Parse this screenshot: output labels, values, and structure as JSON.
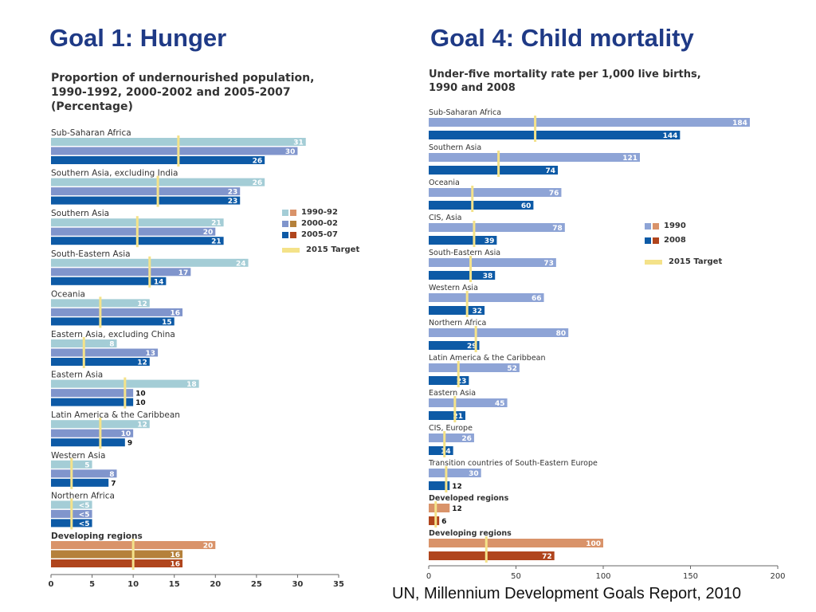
{
  "slide": {
    "title_left": "Goal 1: Hunger",
    "title_right": "Goal 4: Child mortality",
    "source": "UN, Millennium Development Goals Report, 2010"
  },
  "chart_data": [
    {
      "type": "bar",
      "orientation": "horizontal",
      "title": "Proportion of undernourished population,\n1990-1992, 2000-2002 and 2005-2007\n(Percentage)",
      "categories": [
        "Sub-Saharan Africa",
        "Southern Asia, excluding India",
        "Southern Asia",
        "South-Eastern Asia",
        "Oceania",
        "Eastern Asia, excluding China",
        "Eastern Asia",
        "Latin America & the Caribbean",
        "Western Asia",
        "Northern Africa",
        "Developing regions"
      ],
      "series": [
        {
          "name": "1990-92",
          "values": [
            31,
            26,
            21,
            24,
            12,
            8,
            18,
            12,
            5,
            5,
            20
          ],
          "labels": [
            "31",
            "26",
            "21",
            "24",
            "12",
            "8",
            "18",
            "12",
            "5",
            "<5",
            "20"
          ]
        },
        {
          "name": "2000-02",
          "values": [
            30,
            23,
            20,
            17,
            16,
            13,
            10,
            10,
            8,
            5,
            16
          ],
          "labels": [
            "30",
            "23",
            "20",
            "17",
            "16",
            "13",
            "10",
            "10",
            "8",
            "<5",
            "16"
          ]
        },
        {
          "name": "2005-07",
          "values": [
            26,
            23,
            21,
            14,
            15,
            12,
            10,
            9,
            7,
            5,
            16
          ],
          "labels": [
            "26",
            "23",
            "21",
            "14",
            "15",
            "12",
            "10",
            "9",
            "7",
            "<5",
            "16"
          ]
        }
      ],
      "targets": [
        15.5,
        13,
        10.5,
        12,
        6,
        4,
        9,
        6,
        2.5,
        2.5,
        10
      ],
      "target_label": "2015 Target",
      "xlim": [
        0,
        35
      ],
      "xticks": [
        "0",
        "5",
        "10",
        "15",
        "20",
        "25",
        "30",
        "35"
      ],
      "legend_position": "right",
      "colors": {
        "1990-92": "#a4cdd6",
        "2000-02": "#8095cc",
        "2005-07": "#0d5aa6",
        "dev_1990-92": "#d9936a",
        "dev_2000-02": "#b5813b",
        "dev_2005-07": "#b0451d",
        "target": "#f4e289"
      },
      "emphasized_category": "Developing regions"
    },
    {
      "type": "bar",
      "orientation": "horizontal",
      "title": "Under-five mortality rate per 1,000 live births,\n1990 and 2008",
      "categories": [
        "Sub-Saharan Africa",
        "Southern Asia",
        "Oceania",
        "CIS, Asia",
        "South-Eastern Asia",
        "Western Asia",
        "Northern Africa",
        "Latin America & the Caribbean",
        "Eastern Asia",
        "CIS, Europe",
        "Transition countries of South-Eastern Europe",
        "Developed regions",
        "Developing regions"
      ],
      "series": [
        {
          "name": "1990",
          "values": [
            184,
            121,
            76,
            78,
            73,
            66,
            80,
            52,
            45,
            26,
            30,
            12,
            100
          ]
        },
        {
          "name": "2008",
          "values": [
            144,
            74,
            60,
            39,
            38,
            32,
            29,
            23,
            21,
            14,
            12,
            6,
            72
          ]
        }
      ],
      "targets": [
        61,
        40,
        25,
        26,
        24,
        22,
        27,
        17,
        15,
        9,
        10,
        4,
        33
      ],
      "target_label": "2015 Target",
      "xlim": [
        0,
        200
      ],
      "xticks": [
        "0",
        "50",
        "100",
        "150",
        "200"
      ],
      "legend_position": "right",
      "colors": {
        "1990": "#8ea4d6",
        "2008": "#0d5aa6",
        "agg_1990": "#d9936a",
        "agg_2008": "#b0451d",
        "target": "#f4e289"
      },
      "emphasized_categories": [
        "Developed regions",
        "Developing regions"
      ]
    }
  ]
}
